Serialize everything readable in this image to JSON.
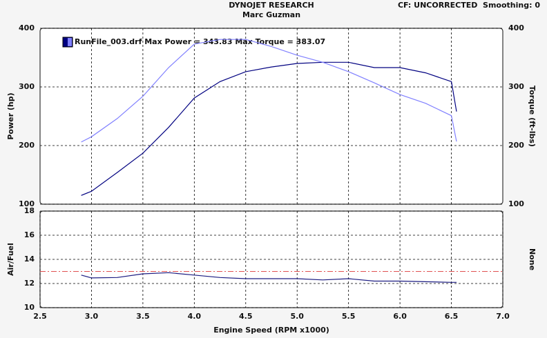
{
  "header": {
    "title": "DYNOJET RESEARCH",
    "subtitle": "Marc Guzman",
    "settings": "CF: UNCORRECTED  Smoothing: 0"
  },
  "chart_data": [
    {
      "type": "line",
      "legend": "RunFile_003.drf Max Power = 343.83 Max Torque = 383.07",
      "ylabel": "Power (hp)",
      "y2label": "Torque (ft-lbs)",
      "xlim": [
        2.5,
        7
      ],
      "xticks": [
        3,
        3.5,
        4,
        4.5,
        5,
        5.5,
        6,
        6.5
      ],
      "ylim": [
        100,
        400
      ],
      "yticks": [
        100,
        200,
        300,
        400
      ],
      "y2lim": [
        100,
        400
      ],
      "y2ticks": [
        100,
        200,
        300,
        400
      ],
      "grid": true,
      "x": [
        2.9,
        3.0,
        3.25,
        3.5,
        3.75,
        4.0,
        4.25,
        4.5,
        4.75,
        5.0,
        5.25,
        5.5,
        5.75,
        6.0,
        6.25,
        6.5,
        6.55
      ],
      "series": [
        {
          "color": "#000080",
          "values": [
            115,
            122,
            154,
            187,
            231,
            281,
            309,
            326,
            334,
            340,
            342,
            342,
            333,
            333,
            324,
            309,
            258
          ]
        },
        {
          "color": "#8080ff",
          "axis": "y2",
          "values": [
            206,
            215,
            246,
            284,
            333,
            373,
            381,
            381,
            369,
            354,
            342,
            326,
            307,
            287,
            272,
            251,
            207
          ]
        }
      ]
    },
    {
      "type": "line",
      "ylabel": "Air/Fuel",
      "y2label": "None",
      "xlabel": "Engine Speed (RPM x1000)",
      "xlim": [
        2.5,
        7
      ],
      "xticks": [
        2.5,
        {
          "value": 3,
          "label": "3.0"
        },
        3.5,
        {
          "value": 4,
          "label": "4.0"
        },
        4.5,
        {
          "value": 5,
          "label": "5.0"
        },
        5.5,
        {
          "value": 6,
          "label": "6.0"
        },
        6.5,
        {
          "value": 7,
          "label": "7.0"
        }
      ],
      "ylim": [
        10,
        18
      ],
      "yticks": [
        10,
        12,
        14,
        16,
        18
      ],
      "grid": true,
      "reference_line": {
        "value": 13,
        "color": "#e05050"
      },
      "x": [
        2.9,
        3.0,
        3.25,
        3.5,
        3.75,
        4.0,
        4.25,
        4.5,
        5.0,
        5.25,
        5.5,
        5.75,
        6.0,
        6.5,
        6.55
      ],
      "series": [
        {
          "color": "#1a1a80",
          "values": [
            12.7,
            12.46,
            12.5,
            12.8,
            12.9,
            12.7,
            12.5,
            12.4,
            12.4,
            12.3,
            12.4,
            12.2,
            12.2,
            12.1,
            12.1
          ]
        }
      ]
    }
  ]
}
